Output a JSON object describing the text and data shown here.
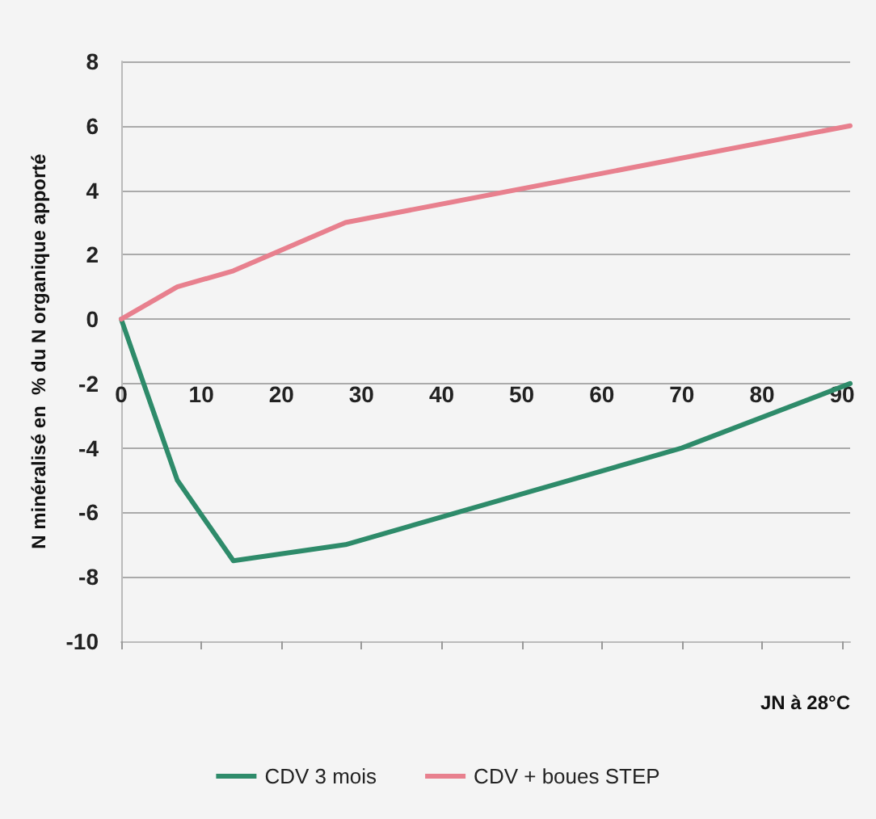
{
  "chart_data": {
    "type": "line",
    "xlabel": "JN à 28°C",
    "ylabel": "N minéralisé en  % du N organique apporté",
    "xlim": [
      0,
      91
    ],
    "xticks": [
      0,
      10,
      20,
      30,
      40,
      50,
      60,
      70,
      80,
      90
    ],
    "ylim": [
      -10,
      8
    ],
    "yticks": [
      -10,
      -8,
      -6,
      -4,
      -2,
      0,
      2,
      4,
      6,
      8
    ],
    "grid": "y",
    "legend": "bottom",
    "marker": "none",
    "line_style": "solid",
    "series": [
      {
        "name": "CDV 3 mois",
        "color": "#2e8b6a",
        "x": [
          0,
          7,
          14,
          28,
          70,
          91
        ],
        "values": [
          0,
          -5,
          -7.5,
          -7,
          -4,
          -2
        ]
      },
      {
        "name": "CDV + boues STEP",
        "color": "#e8808e",
        "x": [
          0,
          7,
          14,
          28,
          91
        ],
        "values": [
          0,
          1,
          1.5,
          3,
          6
        ]
      }
    ]
  }
}
